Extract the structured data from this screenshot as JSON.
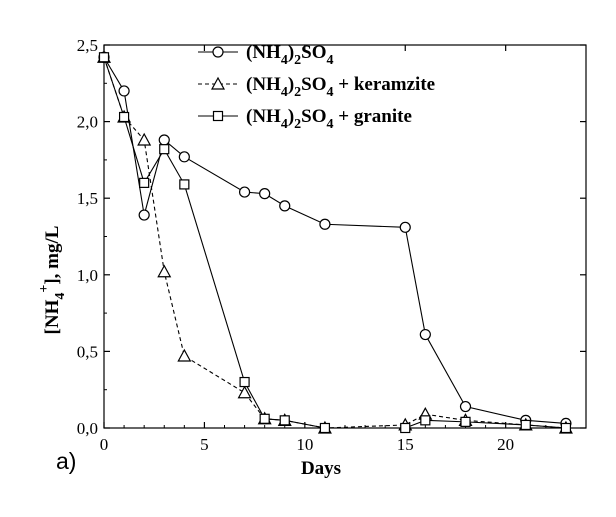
{
  "chart_data": {
    "type": "line",
    "panel_label": "a)",
    "xlabel": "Days",
    "ylabel": "[NH₄⁺], mg/L",
    "xlim": [
      0,
      24
    ],
    "ylim": [
      0,
      2.5
    ],
    "x_ticks": [
      0,
      5,
      10,
      15,
      20
    ],
    "y_ticks": [
      0.0,
      0.5,
      1.0,
      1.5,
      2.0,
      2.5
    ],
    "y_tick_labels": [
      "0,0",
      "0,5",
      "1,0",
      "1,5",
      "2,0",
      "2,5"
    ],
    "x_tick_labels": [
      "0",
      "5",
      "10",
      "15",
      "20"
    ],
    "grid": false,
    "legend_position": "top-right",
    "series": [
      {
        "name": "(NH₄)₂SO₄",
        "marker": "circle",
        "line_style": "solid",
        "x": [
          0,
          1,
          2,
          3,
          4,
          7,
          8,
          9,
          11,
          15,
          16,
          18,
          21,
          23
        ],
        "y": [
          2.42,
          2.2,
          1.39,
          1.88,
          1.77,
          1.54,
          1.53,
          1.45,
          1.33,
          1.31,
          0.61,
          0.14,
          0.05,
          0.03
        ]
      },
      {
        "name": "(NH₄)₂SO₄ + keramzite",
        "marker": "triangle",
        "line_style": "dashed",
        "x": [
          0,
          1,
          2,
          3,
          4,
          7,
          8,
          9,
          11,
          15,
          16,
          18,
          21,
          23
        ],
        "y": [
          2.42,
          2.03,
          1.88,
          1.02,
          0.47,
          0.23,
          0.06,
          0.05,
          0.0,
          0.02,
          0.09,
          0.05,
          0.02,
          0.0
        ]
      },
      {
        "name": "(NH₄)₂SO₄ + granite",
        "marker": "square",
        "line_style": "solid",
        "x": [
          0,
          1,
          2,
          3,
          4,
          7,
          8,
          9,
          11,
          15,
          16,
          18,
          21,
          23
        ],
        "y": [
          2.42,
          2.03,
          1.6,
          1.82,
          1.59,
          0.3,
          0.06,
          0.05,
          0.0,
          0.0,
          0.05,
          0.04,
          0.02,
          0.0
        ]
      }
    ],
    "legend": [
      {
        "base": "(NH",
        "sub1": "4",
        "mid": ")",
        "sub2": "2",
        "tail": "SO",
        "sub3": "4",
        "suffix": ""
      },
      {
        "base": "(NH",
        "sub1": "4",
        "mid": ")",
        "sub2": "2",
        "tail": "SO",
        "sub3": "4",
        "suffix": " + keramzite"
      },
      {
        "base": "(NH",
        "sub1": "4",
        "mid": ")",
        "sub2": "2",
        "tail": "SO",
        "sub3": "4",
        "suffix": " + granite"
      }
    ],
    "ylabel_parts": {
      "open": "[NH",
      "sub": "4",
      "sup": "+",
      "close": "], mg/L"
    }
  }
}
